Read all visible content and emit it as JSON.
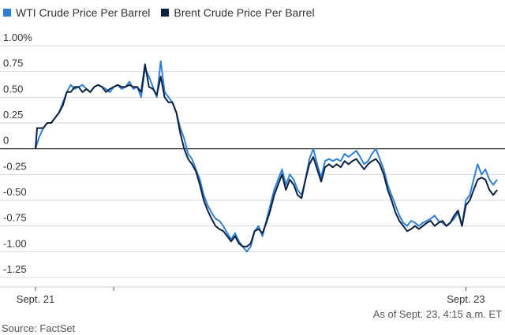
{
  "chart_data": {
    "type": "line",
    "title": "",
    "xlabel": "",
    "ylabel": "",
    "ylim": [
      -1.25,
      1.0
    ],
    "y_ticks": [
      1.0,
      0.75,
      0.5,
      0.25,
      0,
      -0.25,
      -0.5,
      -0.75,
      -1.0,
      -1.25
    ],
    "y_tick_labels": [
      "1.00%",
      "0.75",
      "0.50",
      "0.25",
      "0",
      "-0.25",
      "-0.50",
      "-0.75",
      "-1.00",
      "-1.25"
    ],
    "x_tick_labels": [
      {
        "x": 0,
        "label": "Sept. 21"
      },
      {
        "x": 1,
        "label": ""
      },
      {
        "x": 5.5,
        "label": "Sept. 23"
      }
    ],
    "xlim": [
      0,
      6
    ],
    "series": [
      {
        "name": "WTI Crude Price Per Barrel",
        "color": "#2f7fd4",
        "points": [
          [
            0,
            0
          ],
          [
            0.02,
            0.05
          ],
          [
            0.05,
            0.12
          ],
          [
            0.1,
            0.2
          ],
          [
            0.15,
            0.25
          ],
          [
            0.2,
            0.25
          ],
          [
            0.25,
            0.3
          ],
          [
            0.3,
            0.35
          ],
          [
            0.35,
            0.45
          ],
          [
            0.4,
            0.55
          ],
          [
            0.45,
            0.62
          ],
          [
            0.5,
            0.58
          ],
          [
            0.55,
            0.6
          ],
          [
            0.6,
            0.62
          ],
          [
            0.65,
            0.58
          ],
          [
            0.7,
            0.55
          ],
          [
            0.75,
            0.6
          ],
          [
            0.8,
            0.62
          ],
          [
            0.85,
            0.6
          ],
          [
            0.9,
            0.58
          ],
          [
            0.95,
            0.55
          ],
          [
            1.0,
            0.6
          ],
          [
            1.05,
            0.62
          ],
          [
            1.1,
            0.58
          ],
          [
            1.15,
            0.6
          ],
          [
            1.2,
            0.65
          ],
          [
            1.25,
            0.58
          ],
          [
            1.3,
            0.6
          ],
          [
            1.35,
            0.5
          ],
          [
            1.4,
            0.78
          ],
          [
            1.45,
            0.7
          ],
          [
            1.5,
            0.6
          ],
          [
            1.55,
            0.5
          ],
          [
            1.6,
            0.85
          ],
          [
            1.65,
            0.55
          ],
          [
            1.7,
            0.5
          ],
          [
            1.75,
            0.45
          ],
          [
            1.8,
            0.35
          ],
          [
            1.85,
            0.2
          ],
          [
            1.9,
            0.1
          ],
          [
            1.95,
            -0.05
          ],
          [
            2.0,
            -0.1
          ],
          [
            2.05,
            -0.2
          ],
          [
            2.1,
            -0.3
          ],
          [
            2.15,
            -0.45
          ],
          [
            2.2,
            -0.55
          ],
          [
            2.25,
            -0.62
          ],
          [
            2.3,
            -0.68
          ],
          [
            2.35,
            -0.7
          ],
          [
            2.4,
            -0.75
          ],
          [
            2.45,
            -0.82
          ],
          [
            2.5,
            -0.88
          ],
          [
            2.55,
            -0.82
          ],
          [
            2.6,
            -0.9
          ],
          [
            2.65,
            -0.95
          ],
          [
            2.7,
            -1.0
          ],
          [
            2.75,
            -0.95
          ],
          [
            2.8,
            -0.8
          ],
          [
            2.85,
            -0.75
          ],
          [
            2.9,
            -0.85
          ],
          [
            2.95,
            -0.7
          ],
          [
            3.0,
            -0.55
          ],
          [
            3.05,
            -0.4
          ],
          [
            3.1,
            -0.3
          ],
          [
            3.15,
            -0.2
          ],
          [
            3.2,
            -0.35
          ],
          [
            3.25,
            -0.25
          ],
          [
            3.3,
            -0.3
          ],
          [
            3.35,
            -0.4
          ],
          [
            3.4,
            -0.45
          ],
          [
            3.45,
            -0.3
          ],
          [
            3.5,
            -0.1
          ],
          [
            3.55,
            0.0
          ],
          [
            3.6,
            -0.15
          ],
          [
            3.65,
            -0.28
          ],
          [
            3.7,
            -0.12
          ],
          [
            3.75,
            -0.1
          ],
          [
            3.8,
            -0.12
          ],
          [
            3.85,
            -0.1
          ],
          [
            3.9,
            -0.12
          ],
          [
            3.95,
            -0.05
          ],
          [
            4.0,
            -0.08
          ],
          [
            4.05,
            -0.05
          ],
          [
            4.1,
            -0.02
          ],
          [
            4.15,
            -0.08
          ],
          [
            4.2,
            -0.15
          ],
          [
            4.25,
            -0.12
          ],
          [
            4.3,
            -0.05
          ],
          [
            4.35,
            0.0
          ],
          [
            4.4,
            -0.1
          ],
          [
            4.45,
            -0.2
          ],
          [
            4.5,
            -0.35
          ],
          [
            4.55,
            -0.45
          ],
          [
            4.6,
            -0.55
          ],
          [
            4.65,
            -0.65
          ],
          [
            4.7,
            -0.72
          ],
          [
            4.75,
            -0.75
          ],
          [
            4.8,
            -0.7
          ],
          [
            4.85,
            -0.72
          ],
          [
            4.9,
            -0.75
          ],
          [
            4.95,
            -0.72
          ],
          [
            5.0,
            -0.7
          ],
          [
            5.05,
            -0.68
          ],
          [
            5.1,
            -0.65
          ],
          [
            5.15,
            -0.7
          ],
          [
            5.2,
            -0.72
          ],
          [
            5.25,
            -0.75
          ],
          [
            5.3,
            -0.72
          ],
          [
            5.35,
            -0.68
          ],
          [
            5.4,
            -0.62
          ],
          [
            5.45,
            -0.75
          ],
          [
            5.5,
            -0.5
          ],
          [
            5.55,
            -0.45
          ],
          [
            5.6,
            -0.3
          ],
          [
            5.65,
            -0.15
          ],
          [
            5.7,
            -0.25
          ],
          [
            5.75,
            -0.2
          ],
          [
            5.8,
            -0.3
          ],
          [
            5.85,
            -0.35
          ],
          [
            5.9,
            -0.3
          ]
        ]
      },
      {
        "name": "Brent Crude Price Per Barrel",
        "color": "#0c2040",
        "points": [
          [
            0,
            0
          ],
          [
            0.02,
            0.2
          ],
          [
            0.05,
            0.2
          ],
          [
            0.1,
            0.2
          ],
          [
            0.15,
            0.25
          ],
          [
            0.2,
            0.25
          ],
          [
            0.25,
            0.3
          ],
          [
            0.3,
            0.35
          ],
          [
            0.35,
            0.42
          ],
          [
            0.4,
            0.55
          ],
          [
            0.45,
            0.55
          ],
          [
            0.5,
            0.6
          ],
          [
            0.55,
            0.6
          ],
          [
            0.6,
            0.55
          ],
          [
            0.65,
            0.58
          ],
          [
            0.7,
            0.55
          ],
          [
            0.75,
            0.6
          ],
          [
            0.8,
            0.62
          ],
          [
            0.85,
            0.6
          ],
          [
            0.9,
            0.55
          ],
          [
            0.95,
            0.58
          ],
          [
            1.0,
            0.6
          ],
          [
            1.05,
            0.62
          ],
          [
            1.1,
            0.6
          ],
          [
            1.15,
            0.6
          ],
          [
            1.2,
            0.62
          ],
          [
            1.25,
            0.6
          ],
          [
            1.3,
            0.6
          ],
          [
            1.35,
            0.55
          ],
          [
            1.4,
            0.82
          ],
          [
            1.45,
            0.6
          ],
          [
            1.5,
            0.58
          ],
          [
            1.55,
            0.52
          ],
          [
            1.6,
            0.7
          ],
          [
            1.65,
            0.5
          ],
          [
            1.7,
            0.45
          ],
          [
            1.75,
            0.45
          ],
          [
            1.8,
            0.35
          ],
          [
            1.85,
            0.15
          ],
          [
            1.9,
            0.0
          ],
          [
            1.95,
            -0.1
          ],
          [
            2.0,
            -0.15
          ],
          [
            2.05,
            -0.22
          ],
          [
            2.1,
            -0.35
          ],
          [
            2.15,
            -0.5
          ],
          [
            2.2,
            -0.6
          ],
          [
            2.25,
            -0.68
          ],
          [
            2.3,
            -0.75
          ],
          [
            2.35,
            -0.78
          ],
          [
            2.4,
            -0.8
          ],
          [
            2.45,
            -0.85
          ],
          [
            2.5,
            -0.9
          ],
          [
            2.55,
            -0.85
          ],
          [
            2.6,
            -0.92
          ],
          [
            2.65,
            -0.95
          ],
          [
            2.7,
            -0.95
          ],
          [
            2.75,
            -0.92
          ],
          [
            2.8,
            -0.8
          ],
          [
            2.85,
            -0.78
          ],
          [
            2.9,
            -0.82
          ],
          [
            2.95,
            -0.72
          ],
          [
            3.0,
            -0.6
          ],
          [
            3.05,
            -0.45
          ],
          [
            3.1,
            -0.35
          ],
          [
            3.15,
            -0.25
          ],
          [
            3.2,
            -0.4
          ],
          [
            3.25,
            -0.3
          ],
          [
            3.3,
            -0.35
          ],
          [
            3.35,
            -0.45
          ],
          [
            3.4,
            -0.48
          ],
          [
            3.45,
            -0.3
          ],
          [
            3.5,
            -0.15
          ],
          [
            3.55,
            -0.08
          ],
          [
            3.6,
            -0.2
          ],
          [
            3.65,
            -0.32
          ],
          [
            3.7,
            -0.18
          ],
          [
            3.75,
            -0.15
          ],
          [
            3.8,
            -0.18
          ],
          [
            3.85,
            -0.15
          ],
          [
            3.9,
            -0.18
          ],
          [
            3.95,
            -0.12
          ],
          [
            4.0,
            -0.15
          ],
          [
            4.05,
            -0.12
          ],
          [
            4.1,
            -0.1
          ],
          [
            4.15,
            -0.15
          ],
          [
            4.2,
            -0.2
          ],
          [
            4.25,
            -0.15
          ],
          [
            4.3,
            -0.12
          ],
          [
            4.35,
            -0.1
          ],
          [
            4.4,
            -0.15
          ],
          [
            4.45,
            -0.25
          ],
          [
            4.5,
            -0.4
          ],
          [
            4.55,
            -0.5
          ],
          [
            4.6,
            -0.62
          ],
          [
            4.65,
            -0.7
          ],
          [
            4.7,
            -0.75
          ],
          [
            4.75,
            -0.8
          ],
          [
            4.8,
            -0.78
          ],
          [
            4.85,
            -0.75
          ],
          [
            4.9,
            -0.78
          ],
          [
            4.95,
            -0.75
          ],
          [
            5.0,
            -0.72
          ],
          [
            5.05,
            -0.7
          ],
          [
            5.1,
            -0.75
          ],
          [
            5.15,
            -0.72
          ],
          [
            5.2,
            -0.7
          ],
          [
            5.25,
            -0.75
          ],
          [
            5.3,
            -0.72
          ],
          [
            5.35,
            -0.65
          ],
          [
            5.4,
            -0.6
          ],
          [
            5.45,
            -0.75
          ],
          [
            5.5,
            -0.55
          ],
          [
            5.55,
            -0.5
          ],
          [
            5.6,
            -0.4
          ],
          [
            5.65,
            -0.3
          ],
          [
            5.7,
            -0.28
          ],
          [
            5.75,
            -0.3
          ],
          [
            5.8,
            -0.4
          ],
          [
            5.85,
            -0.45
          ],
          [
            5.9,
            -0.4
          ]
        ]
      }
    ],
    "as_of": "As of Sept. 23, 4:15 a.m. ET",
    "source": "Source: FactSet"
  }
}
